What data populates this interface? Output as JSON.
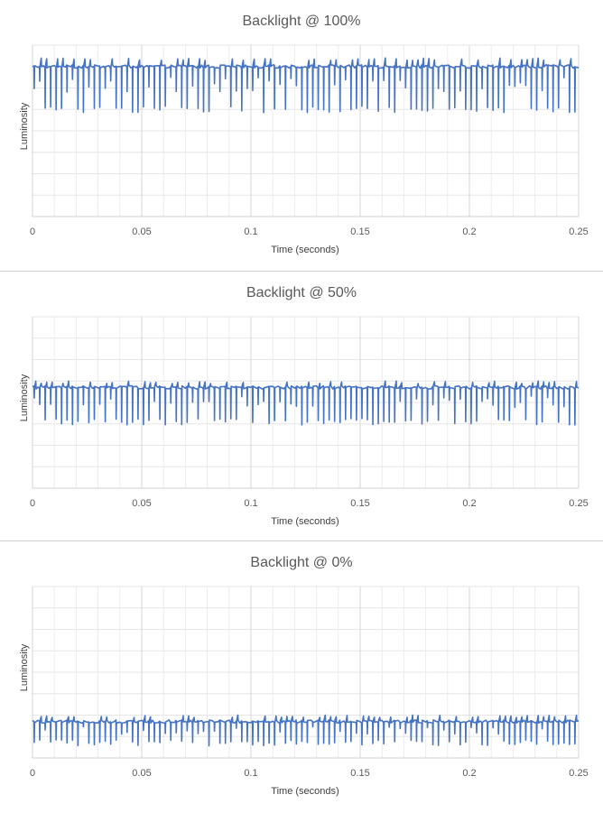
{
  "chart_data": [
    {
      "type": "line",
      "title": "Backlight @ 100%",
      "xlabel": "Time (seconds)",
      "ylabel": "Luminosity",
      "xlim": [
        0,
        0.25
      ],
      "xticks": [
        "0",
        "0.05",
        "0.1",
        "0.15",
        "0.2",
        "0.25"
      ],
      "xtick_values": [
        0,
        0.05,
        0.1,
        0.15,
        0.2,
        0.25
      ],
      "ylim": [
        0,
        8
      ],
      "grid": true,
      "series": [
        {
          "color": "#4472C4",
          "pattern": "periodic flicker",
          "period_s": 0.0025,
          "baseline": 7.0,
          "dip_level": 5.0,
          "peak_level": 7.4
        }
      ]
    },
    {
      "type": "line",
      "title": "Backlight @ 50%",
      "xlabel": "Time (seconds)",
      "ylabel": "Luminosity",
      "xlim": [
        0,
        0.25
      ],
      "xticks": [
        "0",
        "0.05",
        "0.1",
        "0.15",
        "0.2",
        "0.25"
      ],
      "xtick_values": [
        0,
        0.05,
        0.1,
        0.15,
        0.2,
        0.25
      ],
      "ylim": [
        0,
        8
      ],
      "grid": true,
      "series": [
        {
          "color": "#4472C4",
          "pattern": "periodic flicker",
          "period_s": 0.0025,
          "baseline": 4.7,
          "dip_level": 3.1,
          "peak_level": 5.0
        }
      ]
    },
    {
      "type": "line",
      "title": "Backlight @ 0%",
      "xlabel": "Time (seconds)",
      "ylabel": "Luminosity",
      "xlim": [
        0,
        0.25
      ],
      "xticks": [
        "0",
        "0.05",
        "0.1",
        "0.15",
        "0.2",
        "0.25"
      ],
      "xtick_values": [
        0,
        0.05,
        0.1,
        0.15,
        0.2,
        0.25
      ],
      "ylim": [
        0,
        8
      ],
      "grid": true,
      "series": [
        {
          "color": "#4472C4",
          "pattern": "periodic flicker",
          "period_s": 0.0025,
          "baseline": 1.7,
          "dip_level": 0.7,
          "peak_level": 2.0
        }
      ]
    }
  ]
}
